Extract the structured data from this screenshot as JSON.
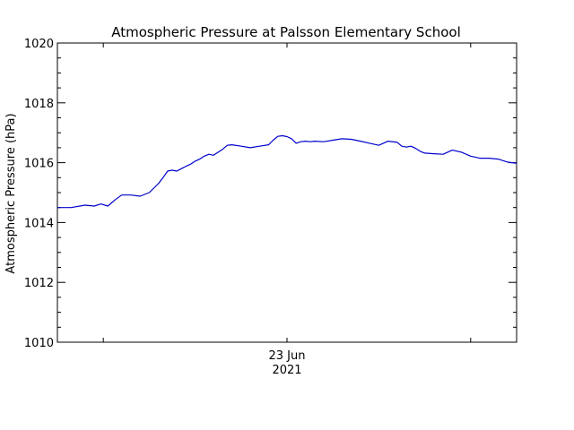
{
  "chart_data": {
    "type": "line",
    "title": "Atmospheric Pressure at Palsson Elementary School",
    "ylabel": "Atmospheric Pressure (hPa)",
    "xlabel": "",
    "ylim": [
      1010,
      1020
    ],
    "yticks": [
      1010,
      1012,
      1014,
      1016,
      1018,
      1020
    ],
    "y_minor_step": 0.5,
    "xlim": [
      0,
      1
    ],
    "x_major_ticks": [
      0.1,
      0.5,
      0.9
    ],
    "x_tick_labels": [
      {
        "x": 0.5,
        "line1": "23 Jun",
        "line2": "2021"
      }
    ],
    "grid": false,
    "series": [
      {
        "color": "#0000cc",
        "x": [
          0.0,
          0.03,
          0.06,
          0.08,
          0.095,
          0.11,
          0.125,
          0.14,
          0.16,
          0.18,
          0.2,
          0.21,
          0.22,
          0.23,
          0.24,
          0.25,
          0.26,
          0.27,
          0.28,
          0.29,
          0.3,
          0.31,
          0.32,
          0.33,
          0.34,
          0.36,
          0.37,
          0.38,
          0.4,
          0.42,
          0.44,
          0.46,
          0.47,
          0.48,
          0.49,
          0.5,
          0.51,
          0.52,
          0.53,
          0.54,
          0.55,
          0.56,
          0.58,
          0.6,
          0.62,
          0.64,
          0.66,
          0.68,
          0.7,
          0.72,
          0.74,
          0.75,
          0.76,
          0.77,
          0.78,
          0.79,
          0.8,
          0.82,
          0.84,
          0.86,
          0.88,
          0.9,
          0.92,
          0.94,
          0.96,
          0.98,
          1.0
        ],
        "y": [
          1014.5,
          1014.5,
          1014.58,
          1014.55,
          1014.62,
          1014.55,
          1014.75,
          1014.92,
          1014.92,
          1014.88,
          1015.0,
          1015.15,
          1015.3,
          1015.5,
          1015.72,
          1015.75,
          1015.72,
          1015.8,
          1015.88,
          1015.95,
          1016.05,
          1016.12,
          1016.22,
          1016.28,
          1016.25,
          1016.45,
          1016.58,
          1016.6,
          1016.55,
          1016.5,
          1016.55,
          1016.6,
          1016.75,
          1016.88,
          1016.9,
          1016.87,
          1016.8,
          1016.65,
          1016.7,
          1016.72,
          1016.7,
          1016.72,
          1016.7,
          1016.75,
          1016.8,
          1016.78,
          1016.72,
          1016.65,
          1016.58,
          1016.72,
          1016.68,
          1016.55,
          1016.52,
          1016.55,
          1016.48,
          1016.38,
          1016.32,
          1016.3,
          1016.28,
          1016.42,
          1016.35,
          1016.22,
          1016.15,
          1016.15,
          1016.12,
          1016.02,
          1015.98
        ]
      }
    ]
  }
}
